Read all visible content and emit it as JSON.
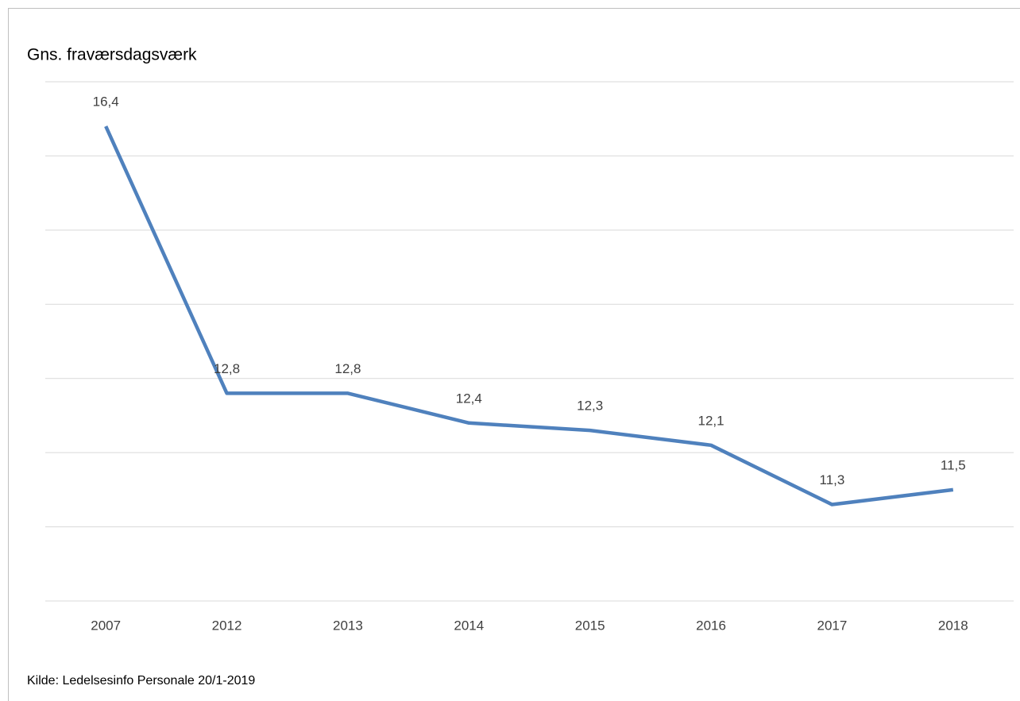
{
  "chart_data": {
    "type": "line",
    "title": "Gns. fraværsdagsværk",
    "source": "Kilde: Ledelsesinfo Personale 20/1-2019",
    "categories": [
      "2007",
      "2012",
      "2013",
      "2014",
      "2015",
      "2016",
      "2017",
      "2018"
    ],
    "series": [
      {
        "name": "Gns. fraværsdagsværk",
        "color": "#4f81bd",
        "values": [
          16.4,
          12.8,
          12.8,
          12.4,
          12.3,
          12.1,
          11.3,
          11.5
        ],
        "value_labels": [
          "16,4",
          "12,8",
          "12,8",
          "12,4",
          "12,3",
          "12,1",
          "11,3",
          "11,5"
        ]
      }
    ],
    "ylim": [
      10,
      17
    ],
    "yticks": [
      10,
      11,
      12,
      13,
      14,
      15,
      16,
      17
    ],
    "grid": true
  }
}
